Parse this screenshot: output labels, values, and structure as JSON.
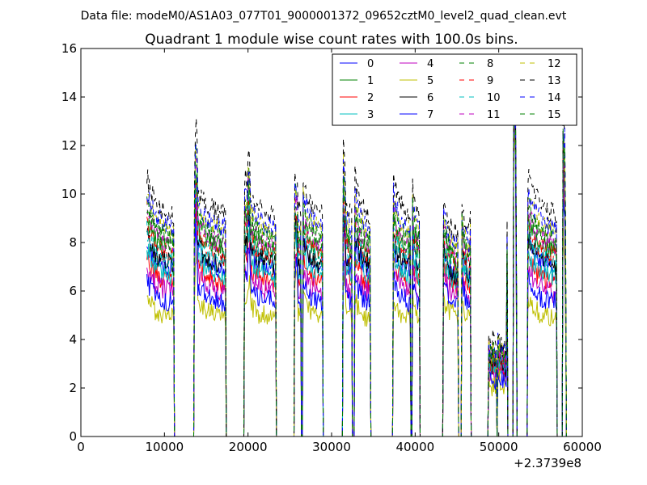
{
  "chart_data": {
    "type": "line",
    "suptitle": "Data file: modeM0/AS1A03_077T01_9000001372_09652cztM0_level2_quad_clean.evt",
    "title": "Quadrant 1 module wise count rates with 100.0s bins.",
    "xlabel": "",
    "ylabel": "",
    "x_offset_label": "+2.3739e8",
    "xlim": [
      0,
      60000
    ],
    "ylim": [
      0,
      16
    ],
    "x_ticks": [
      0,
      10000,
      20000,
      30000,
      40000,
      50000,
      60000
    ],
    "x_tick_labels": [
      "0",
      "10000",
      "20000",
      "30000",
      "40000",
      "50000",
      "60000"
    ],
    "y_ticks": [
      0,
      2,
      4,
      6,
      8,
      10,
      12,
      14,
      16
    ],
    "y_tick_labels": [
      "0",
      "2",
      "4",
      "6",
      "8",
      "10",
      "12",
      "14",
      "16"
    ],
    "legend_position": "top-right",
    "segments": [
      {
        "start": 7900,
        "end": 11100
      },
      {
        "start": 13600,
        "end": 17300
      },
      {
        "start": 19600,
        "end": 23300
      },
      {
        "start": 25600,
        "end": 26300
      },
      {
        "start": 26600,
        "end": 28900
      },
      {
        "start": 31400,
        "end": 32400
      },
      {
        "start": 32800,
        "end": 34600
      },
      {
        "start": 37400,
        "end": 39400
      },
      {
        "start": 39700,
        "end": 40500
      },
      {
        "start": 43400,
        "end": 45100
      },
      {
        "start": 45600,
        "end": 46600
      },
      {
        "start": 48800,
        "end": 49200
      },
      {
        "start": 49300,
        "end": 49700
      },
      {
        "start": 49900,
        "end": 51000
      },
      {
        "start": 51800,
        "end": 52100
      },
      {
        "start": 53500,
        "end": 56900
      },
      {
        "start": 57700,
        "end": 58000
      }
    ],
    "series": [
      {
        "name": "0",
        "color": "#0000ff",
        "dashed": false,
        "level": 7.2
      },
      {
        "name": "1",
        "color": "#008000",
        "dashed": false,
        "level": 8.0
      },
      {
        "name": "2",
        "color": "#ff0000",
        "dashed": false,
        "level": 6.6
      },
      {
        "name": "3",
        "color": "#00bfbf",
        "dashed": false,
        "level": 6.9
      },
      {
        "name": "4",
        "color": "#bf00bf",
        "dashed": false,
        "level": 6.2
      },
      {
        "name": "5",
        "color": "#bfbf00",
        "dashed": false,
        "level": 5.1
      },
      {
        "name": "6",
        "color": "#000000",
        "dashed": false,
        "level": 7.4
      },
      {
        "name": "7",
        "color": "#0000ff",
        "dashed": false,
        "level": 5.8
      },
      {
        "name": "8",
        "color": "#008000",
        "dashed": true,
        "level": 8.6
      },
      {
        "name": "9",
        "color": "#ff0000",
        "dashed": true,
        "level": 7.8
      },
      {
        "name": "10",
        "color": "#00bfbf",
        "dashed": true,
        "level": 7.6
      },
      {
        "name": "11",
        "color": "#bf00bf",
        "dashed": true,
        "level": 8.3
      },
      {
        "name": "12",
        "color": "#bfbf00",
        "dashed": true,
        "level": 8.9
      },
      {
        "name": "13",
        "color": "#000000",
        "dashed": true,
        "level": 9.6
      },
      {
        "name": "14",
        "color": "#0000ff",
        "dashed": true,
        "level": 9.0
      },
      {
        "name": "15",
        "color": "#008000",
        "dashed": true,
        "level": 8.4
      }
    ]
  }
}
